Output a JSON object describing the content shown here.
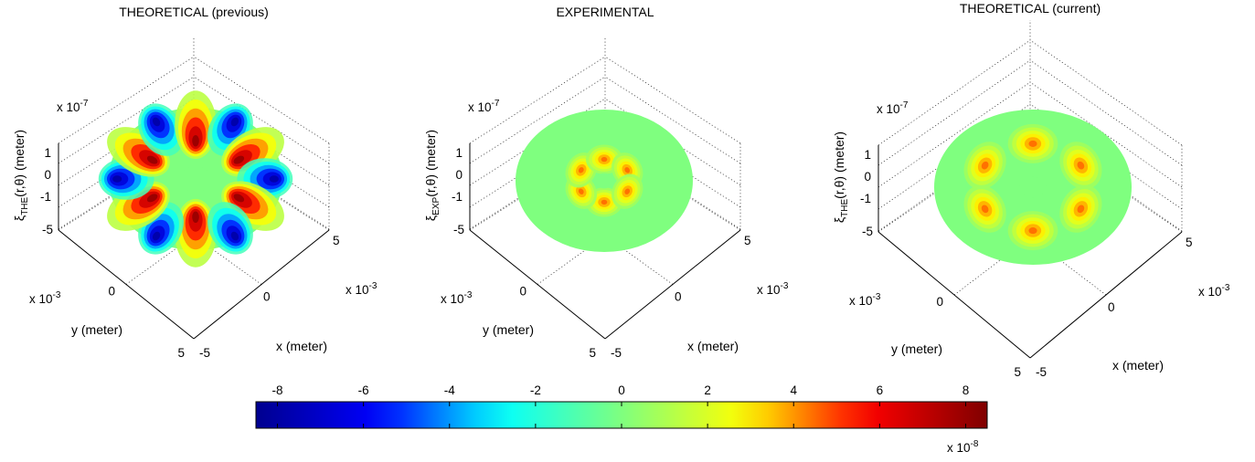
{
  "colors": {
    "background": "#ffffff",
    "axis": "#000000",
    "grid": "#444444"
  },
  "colormap": {
    "name": "jet",
    "stops": [
      "#00008f",
      "#0000ff",
      "#00ffff",
      "#7fff7f",
      "#ffff00",
      "#ff0000",
      "#800000"
    ]
  },
  "chart_data": [
    {
      "type": "surface",
      "title": "THEORETICAL (previous)",
      "xlabel": "x (meter)",
      "ylabel": "y (meter)",
      "zlabel": "ξ_THE(r,θ) (meter)",
      "zlabel_text": {
        "main": "ξ",
        "sub": "THE",
        "rest": "(r,θ) (meter)"
      },
      "z_exponent": "x 10-7",
      "xy_exponent": "x 10-3",
      "x_ticks": [
        "-5",
        "0",
        "5"
      ],
      "y_ticks": [
        "-5",
        "0",
        "5"
      ],
      "z_ticks": [
        "1",
        "0",
        "-1"
      ],
      "xlim": [
        -0.005,
        0.005
      ],
      "ylim": [
        -0.005,
        0.005
      ],
      "zlim": [
        -1.5e-07,
        1.5e-07
      ],
      "view": "isometric",
      "surface": {
        "lobes": 6,
        "lobe_radius_mm": 3.8,
        "lobe_width_mm": 1.5,
        "peak": 8e-08,
        "trough": -8e-08,
        "center": 0
      }
    },
    {
      "type": "surface",
      "title": "EXPERIMENTAL",
      "xlabel": "x (meter)",
      "ylabel": "y (meter)",
      "zlabel": "ξ_EXP(r,θ) (meter)",
      "zlabel_text": {
        "main": "ξ",
        "sub": "EXP",
        "rest": "(r,θ) (meter)"
      },
      "z_exponent": "x 10-7",
      "xy_exponent": "x 10-3",
      "x_ticks": [
        "-5",
        "0",
        "5"
      ],
      "y_ticks": [
        "-5",
        "0",
        "5"
      ],
      "z_ticks": [
        "1",
        "0",
        "-1"
      ],
      "xlim": [
        -0.005,
        0.005
      ],
      "ylim": [
        -0.005,
        0.005
      ],
      "zlim": [
        -1.5e-07,
        1.5e-07
      ],
      "view": "isometric",
      "surface": {
        "lobes": 6,
        "lobe_radius_mm": 1.5,
        "lobe_width_mm": 0.9,
        "peak": 4.5e-08,
        "trough": 0,
        "center": 0
      }
    },
    {
      "type": "surface",
      "title": "THEORETICAL (current)",
      "xlabel": "x (meter)",
      "ylabel": "y (meter)",
      "zlabel": "ξ_THE(r,θ) (meter)",
      "zlabel_text": {
        "main": "ξ",
        "sub": "THE",
        "rest": "(r,θ) (meter)"
      },
      "z_exponent": "x 10-7",
      "xy_exponent": "x 10-3",
      "x_ticks": [
        "-5",
        "0",
        "5"
      ],
      "y_ticks": [
        "-5",
        "0",
        "5"
      ],
      "z_ticks": [
        "1",
        "0",
        "-1"
      ],
      "xlim": [
        -0.005,
        0.005
      ],
      "ylim": [
        -0.005,
        0.005
      ],
      "zlim": [
        -1.5e-07,
        1.5e-07
      ],
      "view": "isometric",
      "surface": {
        "lobes": 6,
        "lobe_radius_mm": 2.8,
        "lobe_width_mm": 1.1,
        "peak": 4.5e-08,
        "trough": 0,
        "center": 0
      }
    },
    {
      "type": "colorbar",
      "ticks": [
        "-8",
        "-6",
        "-4",
        "-2",
        "0",
        "2",
        "4",
        "6",
        "8"
      ],
      "range": [
        -8.5,
        8.5
      ],
      "exponent": "x 10-8",
      "orientation": "horizontal"
    }
  ]
}
